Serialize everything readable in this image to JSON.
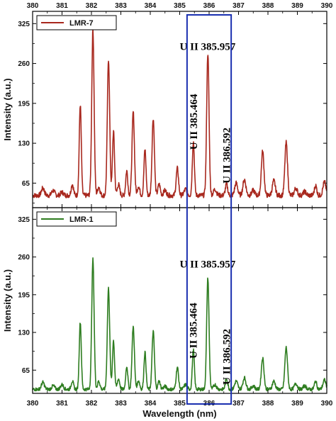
{
  "chart_data": {
    "type": "line",
    "xlabel": "Wavelength (nm)",
    "xlim": [
      380,
      390
    ],
    "x_ticks": [
      "380",
      "381",
      "382",
      "383",
      "384",
      "385",
      "386",
      "387",
      "388",
      "389",
      "390"
    ],
    "highlight_range": [
      385.25,
      386.75
    ],
    "highlight_color": "#1a2fb0",
    "panels": [
      {
        "ylabel": "Intensity (a.u.)",
        "ylim": [
          25,
          345
        ],
        "y_ticks": [
          65,
          130,
          195,
          260,
          325
        ],
        "y_tick_labels": [
          "65",
          "130",
          "195",
          "260",
          "325"
        ],
        "series": [
          {
            "name": "LMR-7",
            "color": "#a8281e",
            "baseline": 45,
            "noise_level": 4,
            "peaks": [
              [
                380.35,
                12,
                0.05
              ],
              [
                380.7,
                8,
                0.05
              ],
              [
                381.0,
                5,
                0.05
              ],
              [
                381.35,
                18,
                0.04
              ],
              [
                381.62,
                148,
                0.035
              ],
              [
                382.05,
                270,
                0.04
              ],
              [
                382.25,
                14,
                0.04
              ],
              [
                382.58,
                222,
                0.04
              ],
              [
                382.75,
                104,
                0.035
              ],
              [
                382.92,
                18,
                0.04
              ],
              [
                383.2,
                40,
                0.035
              ],
              [
                383.42,
                136,
                0.04
              ],
              [
                383.6,
                15,
                0.04
              ],
              [
                383.82,
                75,
                0.035
              ],
              [
                384.1,
                126,
                0.04
              ],
              [
                384.3,
                18,
                0.04
              ],
              [
                384.5,
                8,
                0.05
              ],
              [
                384.92,
                44,
                0.04
              ],
              [
                385.2,
                10,
                0.05
              ],
              [
                385.464,
                88,
                0.035
              ],
              [
                385.957,
                232,
                0.04
              ],
              [
                386.2,
                10,
                0.05
              ],
              [
                386.592,
                18,
                0.04
              ],
              [
                386.92,
                20,
                0.05
              ],
              [
                387.2,
                26,
                0.05
              ],
              [
                387.5,
                8,
                0.05
              ],
              [
                387.82,
                72,
                0.045
              ],
              [
                388.2,
                24,
                0.05
              ],
              [
                388.62,
                86,
                0.045
              ],
              [
                388.95,
                12,
                0.05
              ],
              [
                389.25,
                6,
                0.05
              ],
              [
                389.62,
                16,
                0.04
              ],
              [
                389.92,
                22,
                0.05
              ]
            ]
          }
        ],
        "annotations": [
          {
            "text": "U II 385.957",
            "x": 385.95,
            "y": 282,
            "rotated": false
          },
          {
            "text": "U II 385.464",
            "x": 385.464,
            "y": 165,
            "rotated": true
          },
          {
            "text": "U II 386.592",
            "x": 386.592,
            "y": 110,
            "rotated": true
          }
        ]
      },
      {
        "ylabel": "Intensity (a.u.)",
        "ylim": [
          25,
          345
        ],
        "y_ticks": [
          65,
          130,
          195,
          260,
          325
        ],
        "y_tick_labels": [
          "65",
          "130",
          "195",
          "260",
          "325"
        ],
        "series": [
          {
            "name": "LMR-1",
            "color": "#2e7d20",
            "baseline": 32,
            "noise_level": 3,
            "peaks": [
              [
                380.35,
                12,
                0.05
              ],
              [
                380.7,
                6,
                0.05
              ],
              [
                381.0,
                8,
                0.05
              ],
              [
                381.35,
                14,
                0.04
              ],
              [
                381.62,
                116,
                0.035
              ],
              [
                382.05,
                224,
                0.04
              ],
              [
                382.25,
                14,
                0.04
              ],
              [
                382.58,
                174,
                0.04
              ],
              [
                382.75,
                84,
                0.035
              ],
              [
                382.92,
                18,
                0.04
              ],
              [
                383.2,
                40,
                0.035
              ],
              [
                383.42,
                108,
                0.04
              ],
              [
                383.6,
                15,
                0.04
              ],
              [
                383.82,
                64,
                0.035
              ],
              [
                384.1,
                100,
                0.04
              ],
              [
                384.3,
                14,
                0.04
              ],
              [
                384.5,
                5,
                0.05
              ],
              [
                384.92,
                38,
                0.04
              ],
              [
                385.2,
                8,
                0.05
              ],
              [
                385.464,
                68,
                0.035
              ],
              [
                385.957,
                192,
                0.04
              ],
              [
                386.2,
                8,
                0.05
              ],
              [
                386.592,
                18,
                0.04
              ],
              [
                386.92,
                14,
                0.05
              ],
              [
                387.2,
                20,
                0.05
              ],
              [
                387.5,
                6,
                0.05
              ],
              [
                387.82,
                54,
                0.045
              ],
              [
                388.2,
                14,
                0.05
              ],
              [
                388.62,
                72,
                0.045
              ],
              [
                388.95,
                10,
                0.05
              ],
              [
                389.25,
                6,
                0.05
              ],
              [
                389.62,
                14,
                0.04
              ],
              [
                389.92,
                16,
                0.05
              ]
            ]
          }
        ],
        "annotations": [
          {
            "text": "U II 385.957",
            "x": 385.95,
            "y": 242,
            "rotated": false
          },
          {
            "text": "U II 385.464",
            "x": 385.464,
            "y": 133,
            "rotated": true
          },
          {
            "text": "U II 386.592",
            "x": 386.592,
            "y": 88,
            "rotated": true
          }
        ]
      }
    ]
  }
}
